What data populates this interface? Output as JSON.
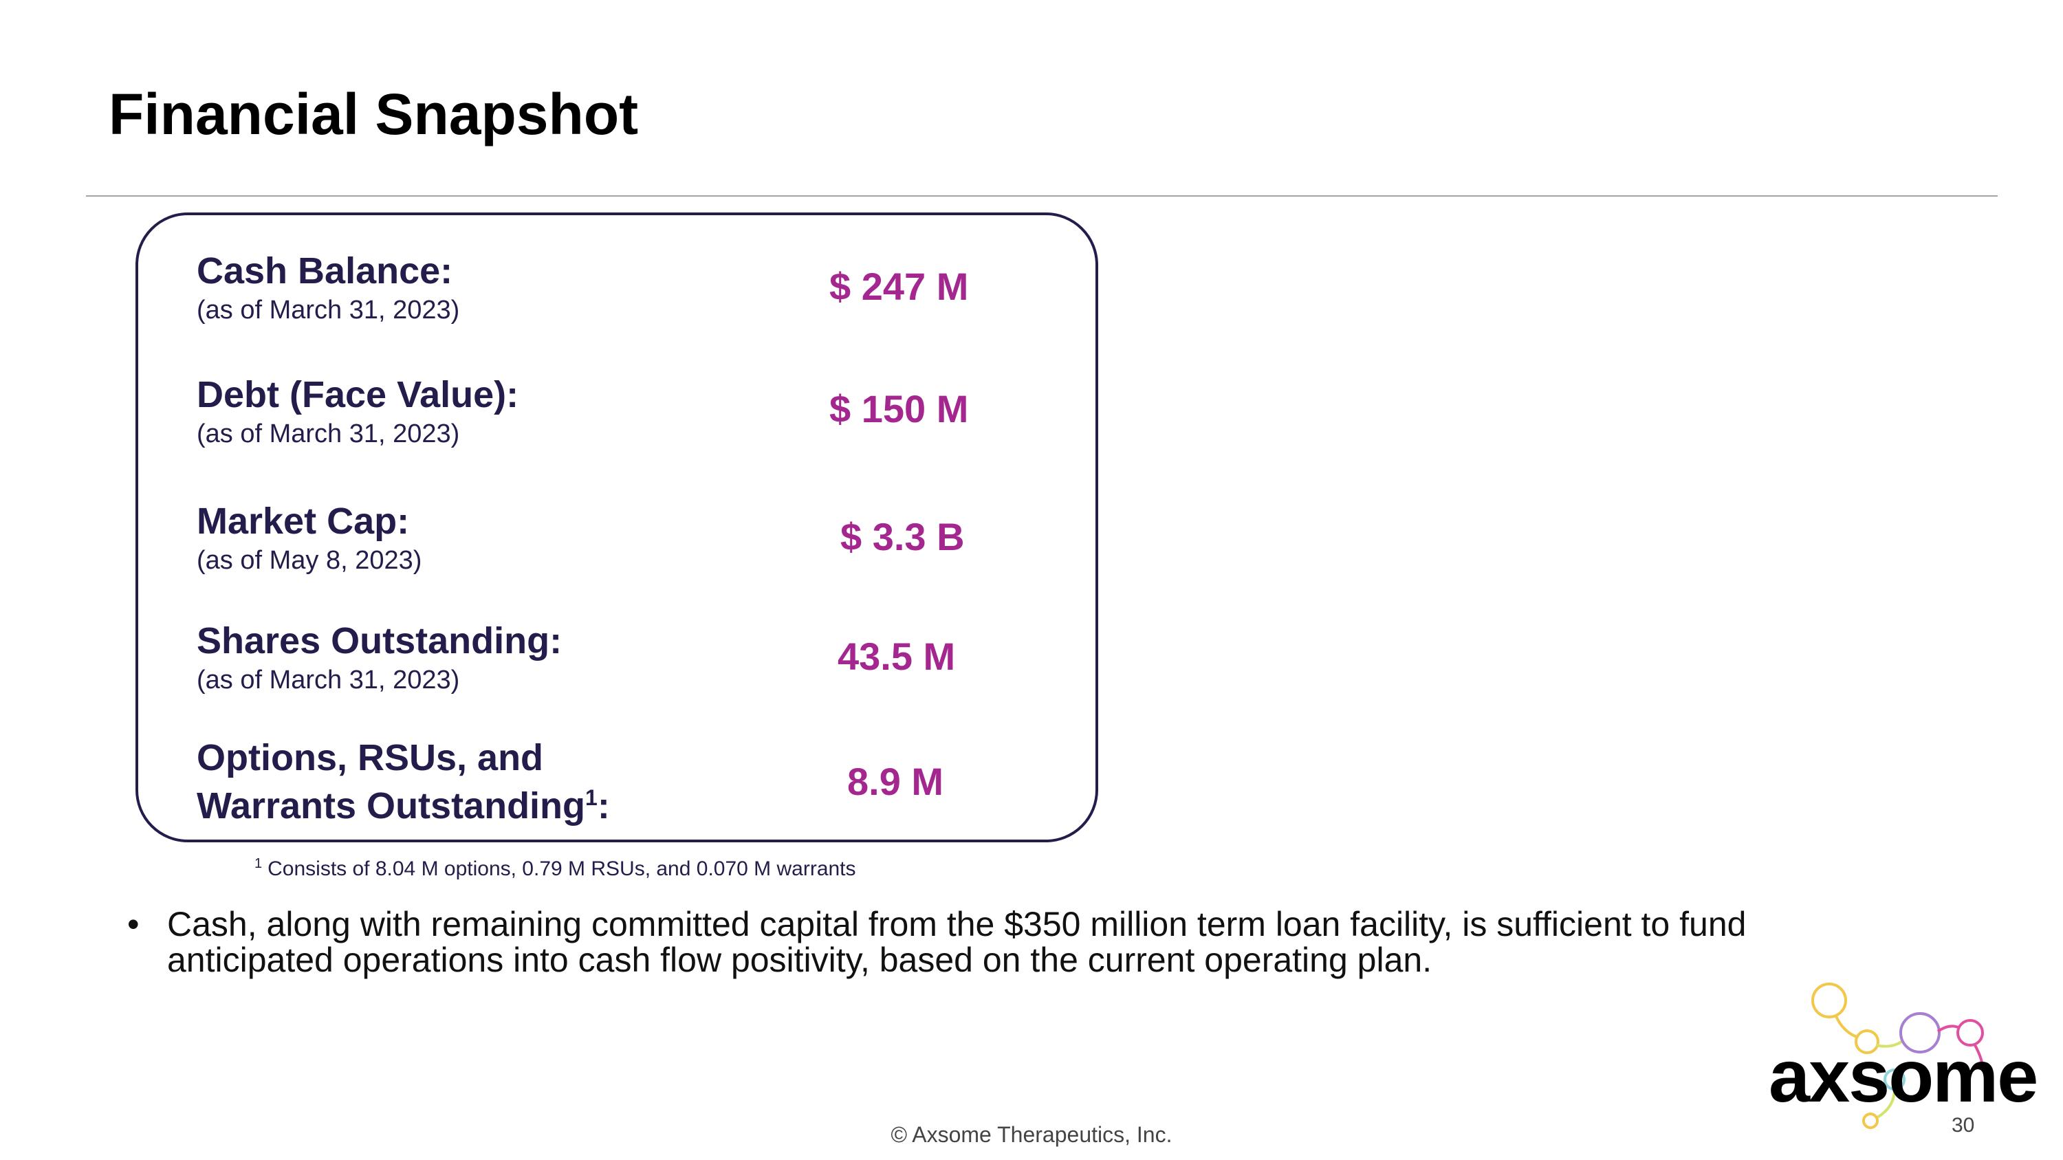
{
  "slide": {
    "title": "Financial Snapshot",
    "page_number": "30",
    "copyright": "© Axsome Therapeutics, Inc."
  },
  "metrics": [
    {
      "label": "Cash Balance:",
      "note": "(as of March 31, 2023)",
      "value": "$ 247 M"
    },
    {
      "label": "Debt (Face Value):",
      "note": "(as of March 31, 2023)",
      "value": "$ 150 M"
    },
    {
      "label": "Market Cap:",
      "note": "(as of May 8, 2023)",
      "value": "$ 3.3 B"
    },
    {
      "label": "Shares Outstanding:",
      "note": "(as of March 31, 2023)",
      "value": "43.5 M"
    },
    {
      "label_line1": "Options, RSUs, and",
      "label_line2": "Warrants Outstanding",
      "superscript": "1",
      "label_suffix": ":",
      "value": "8.9 M"
    }
  ],
  "footnote": {
    "marker": "1",
    "text": "Consists of 8.04 M options, 0.79 M RSUs, and 0.070 M warrants"
  },
  "bullets": [
    {
      "symbol": "•",
      "text": "Cash, along with remaining committed capital from the $350 million term loan facility, is sufficient to fund anticipated operations into cash flow positivity, based on the current operating plan."
    }
  ],
  "logo": {
    "text": "axsome",
    "accent_colors": [
      "#f2c84b",
      "#a77fd0",
      "#e04fa0",
      "#8fd3df",
      "#d5e36a"
    ]
  },
  "colors": {
    "label_navy": "#231d4b",
    "value_magenta": "#a3278f",
    "divider_gray": "#a3a3a3"
  }
}
